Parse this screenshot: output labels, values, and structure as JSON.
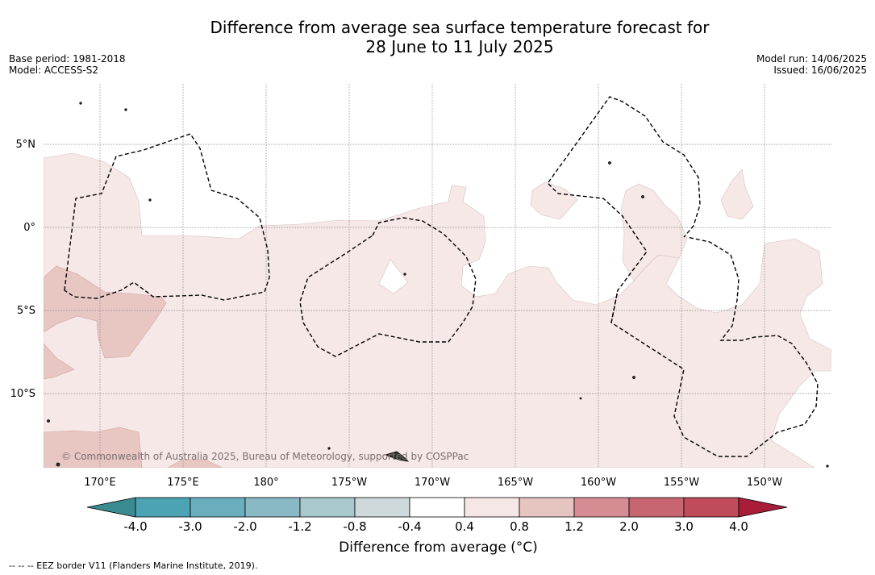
{
  "title": {
    "line1": "Difference from average sea surface temperature forecast for",
    "line2": "28 June to 11 July 2025"
  },
  "meta_left": {
    "base_period": "Base period: 1981-2018",
    "model": "Model: ACCESS-S2"
  },
  "meta_right": {
    "model_run": "Model run: 14/06/2025",
    "issued": "Issued: 16/06/2025"
  },
  "map": {
    "copyright": "© Commonwealth of Australia 2025, Bureau of Meteorology, supported by COSPPac",
    "lat_labels": [
      "5°N",
      "0°",
      "5°S",
      "10°S"
    ],
    "lon_labels": [
      "170°E",
      "175°E",
      "180°",
      "175°W",
      "170°W",
      "165°W",
      "160°W",
      "155°W",
      "150°W"
    ]
  },
  "colorbar": {
    "title": "Difference from average (°C)",
    "tick_labels": [
      "-4.0",
      "-3.0",
      "-2.0",
      "-1.2",
      "-0.8",
      "-0.4",
      "0.4",
      "0.8",
      "1.2",
      "2.0",
      "3.0",
      "4.0"
    ],
    "colors": [
      "#3a8a92",
      "#4ba3b3",
      "#6aadbd",
      "#89b9c4",
      "#a9c9ce",
      "#cdd9da",
      "#ffffff",
      "#f5e7e6",
      "#e6c4c0",
      "#d58c93",
      "#c76670",
      "#bf4b5b",
      "#a81d3a"
    ]
  },
  "footer": "-- -- -- EEZ border V11 (Flanders Marine Institute, 2019)."
}
